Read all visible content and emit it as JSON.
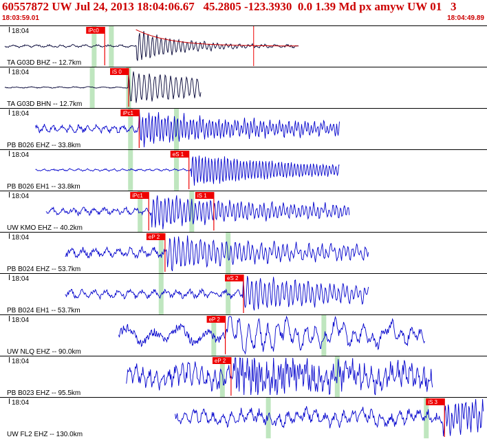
{
  "header": {
    "title": "60557872 UW Jul 24, 2013 18:04:06.67   45.2805 -123.3930  0.0 1.39 Md px amyw UW 01   3",
    "start_time": "18:03:59.01",
    "end_time": "18:04:49.89"
  },
  "colors": {
    "header_text": "#cc0000",
    "trace_vertical": "#000033",
    "trace_other": "#0000cc",
    "pick_flag": "#ee0000",
    "bar": "#bfe6bf",
    "coda": "#cc0000"
  },
  "chart_data": {
    "type": "line",
    "title": "60557872 UW Jul 24, 2013 18:04:06.67   45.2805 -123.3930  0.0 1.39 Md px amyw UW 01   3",
    "x_range_seconds": [
      0,
      50.88
    ],
    "x_start_label": "18:03:59.01",
    "x_end_label": "18:04:49.89",
    "grid": false,
    "legend": "none",
    "panels": [
      {
        "tick_label": "18:04",
        "station": "TA G03D BHZ -- 12.7km",
        "color": "#000033",
        "trace_start_s": 0.5,
        "trace_end_s": 31.2,
        "onset_s": 14.2,
        "noise": 0.1,
        "amp": 1.0,
        "freq": 2.2,
        "bars_s": [
          9.8,
          11.6
        ],
        "coda": true,
        "extra_spike_s": 26.5,
        "picks": [
          {
            "label": "iPc0",
            "t": 9.0
          }
        ]
      },
      {
        "tick_label": "18:04",
        "station": "TA G03D BHN -- 12.7km",
        "color": "#000033",
        "trace_start_s": 0.5,
        "trace_end_s": 21.0,
        "onset_s": 13.4,
        "noise": 0.05,
        "amp": 1.0,
        "freq": 1.8,
        "bars_s": [
          9.6,
          13.4
        ],
        "coda": false,
        "picks": [
          {
            "label": "iS 0",
            "t": 11.5
          }
        ]
      },
      {
        "tick_label": "18:04",
        "station": "PB B026 EHZ -- 33.8km",
        "color": "#0000cc",
        "trace_start_s": 3.7,
        "trace_end_s": 35.5,
        "onset_s": 14.5,
        "noise": 0.28,
        "amp": 1.0,
        "freq": 3.0,
        "bars_s": [
          13.6,
          18.4
        ],
        "coda": false,
        "picks": [
          {
            "label": "iPc1",
            "t": 12.6
          }
        ]
      },
      {
        "tick_label": "18:04",
        "station": "PB B026 EH1 -- 33.8km",
        "color": "#0000cc",
        "trace_start_s": 3.7,
        "trace_end_s": 35.5,
        "onset_s": 20.0,
        "noise": 0.08,
        "amp": 1.0,
        "freq": 3.0,
        "bars_s": [
          13.6,
          18.4
        ],
        "coda": false,
        "picks": [
          {
            "label": "eS 1",
            "t": 17.8
          }
        ]
      },
      {
        "tick_label": "18:04",
        "station": "UW KMO EHZ -- 40.2km",
        "color": "#0000cc",
        "trace_start_s": 4.8,
        "trace_end_s": 36.5,
        "onset_s": 15.8,
        "noise": 0.25,
        "amp": 1.0,
        "freq": 2.5,
        "bars_s": [
          14.6,
          20.0
        ],
        "coda": false,
        "picks": [
          {
            "label": "iPc1",
            "t": 13.6
          },
          {
            "label": "iS 1",
            "t": 20.4
          }
        ]
      },
      {
        "tick_label": "18:04",
        "station": "PB B024 EHZ -- 53.7km",
        "color": "#0000cc",
        "trace_start_s": 6.8,
        "trace_end_s": 38.5,
        "onset_s": 17.4,
        "noise": 0.35,
        "amp": 1.0,
        "freq": 2.2,
        "bars_s": [
          16.8,
          23.8
        ],
        "coda": false,
        "picks": [
          {
            "label": "eP 2",
            "t": 15.3
          }
        ]
      },
      {
        "tick_label": "18:04",
        "station": "PB B024 EH1 -- 53.7km",
        "color": "#0000cc",
        "trace_start_s": 6.8,
        "trace_end_s": 38.5,
        "onset_s": 25.4,
        "noise": 0.3,
        "amp": 1.0,
        "freq": 2.2,
        "bars_s": [
          16.8,
          23.8
        ],
        "coda": false,
        "picks": [
          {
            "label": "eS 2",
            "t": 23.5
          }
        ]
      },
      {
        "tick_label": "18:04",
        "station": "UW NLQ EHZ -- 90.0km",
        "color": "#0000cc",
        "trace_start_s": 12.4,
        "trace_end_s": 44.4,
        "onset_s": 23.8,
        "noise": 0.55,
        "amp": 1.0,
        "freq": 1.0,
        "bars_s": [
          22.3,
          33.8
        ],
        "coda": false,
        "picks": [
          {
            "label": "eP 2",
            "t": 21.6
          }
        ]
      },
      {
        "tick_label": "18:04",
        "station": "PB B023 EHZ -- 95.5km",
        "color": "#0000cc",
        "trace_start_s": 13.2,
        "trace_end_s": 45.2,
        "onset_s": 24.5,
        "noise": 0.75,
        "amp": 1.0,
        "freq": 4.0,
        "bars_s": [
          23.2,
          35.2
        ],
        "coda": false,
        "picks": [
          {
            "label": "eP 2",
            "t": 22.2
          }
        ]
      },
      {
        "tick_label": "18:04",
        "station": "UW FL2 EHZ -- 130.0km",
        "color": "#0000cc",
        "trace_start_s": 18.3,
        "trace_end_s": 50.5,
        "onset_s": 46.3,
        "noise": 0.5,
        "amp": 1.0,
        "freq": 2.8,
        "bars_s": [
          28.0,
          44.5
        ],
        "coda": false,
        "picks": [
          {
            "label": "iS 3",
            "t": 44.5
          }
        ]
      }
    ]
  }
}
